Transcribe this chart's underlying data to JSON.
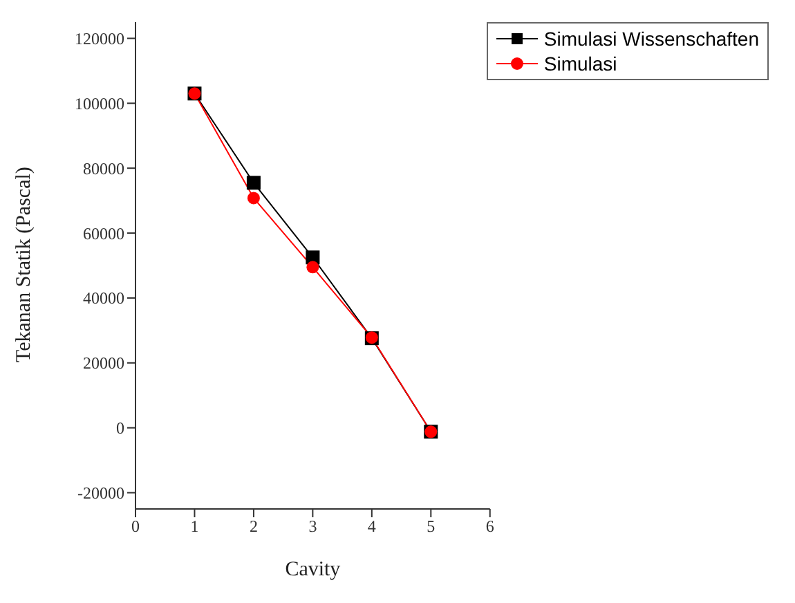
{
  "chart_data": {
    "type": "line",
    "xlabel": "Cavity",
    "ylabel": "Tekanan Statik (Pascal)",
    "x": [
      1,
      2,
      3,
      4,
      5
    ],
    "series": [
      {
        "name": "Simulasi Wissenschaften",
        "color": "#000000",
        "marker": "square",
        "values": [
          103000,
          75500,
          52500,
          27600,
          -1200
        ]
      },
      {
        "name": "Simulasi",
        "color": "#ff0000",
        "marker": "circle",
        "values": [
          103000,
          70800,
          49500,
          27800,
          -1200
        ]
      }
    ],
    "xlim": [
      0,
      6
    ],
    "xticks": [
      0,
      1,
      2,
      3,
      4,
      5,
      6
    ],
    "ylim": [
      -25000,
      125000
    ],
    "yticks": [
      -20000,
      0,
      20000,
      40000,
      60000,
      80000,
      100000,
      120000
    ],
    "legend": "top right",
    "grid": false
  }
}
